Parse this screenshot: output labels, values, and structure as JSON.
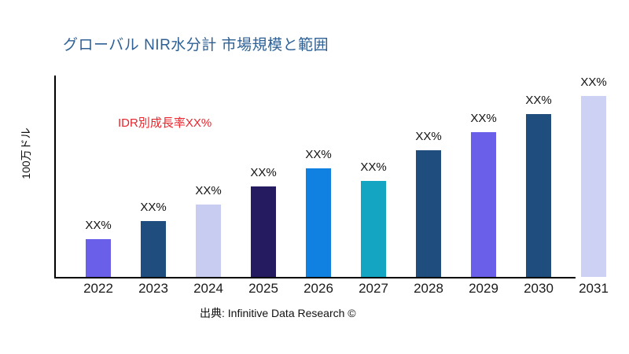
{
  "title": "グローバル NIR水分計 市場規模と範囲",
  "annotation": "IDR別成長率XX%",
  "y_axis_label": "100万ドル",
  "source": "出典: Infinitive Data Research ©",
  "colors": {
    "title": "#2E6095",
    "annotation": "#E9242B",
    "axis": "#000000",
    "bar_label_text": "#111111"
  },
  "chart_data": {
    "type": "bar",
    "title": "グローバル NIR水分計 市場規模と範囲",
    "xlabel": "",
    "ylabel": "100万ドル",
    "categories": [
      "2022",
      "2023",
      "2024",
      "2025",
      "2026",
      "2027",
      "2028",
      "2029",
      "2030",
      "2031"
    ],
    "bar_labels": [
      "XX%",
      "XX%",
      "XX%",
      "XX%",
      "XX%",
      "XX%",
      "XX%",
      "XX%",
      "XX%",
      "XX%"
    ],
    "values_pct_of_max": [
      21,
      31,
      40,
      50,
      60,
      53,
      70,
      80,
      90,
      100
    ],
    "bar_colors": [
      "#6A5FE8",
      "#1F4E7E",
      "#C9CCF1",
      "#251B61",
      "#1081E0",
      "#14A5C2",
      "#1F4E7E",
      "#6A5FE8",
      "#1F4E7E",
      "#CDD1F3"
    ],
    "annotation": "IDR別成長率XX%",
    "source": "出典: Infinitive Data Research ©",
    "legend": "none",
    "grid": false,
    "ylim_note": "no numeric ticks shown; values are XX% placeholders"
  }
}
